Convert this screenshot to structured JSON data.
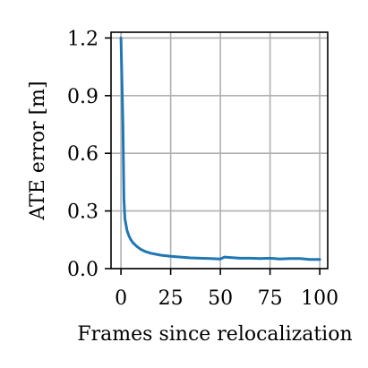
{
  "chart_data": {
    "type": "line",
    "xlabel": "Frames since relocalization",
    "ylabel": "ATE error [m]",
    "xlim": [
      -5,
      104
    ],
    "ylim": [
      0,
      1.23
    ],
    "xticks": [
      0,
      25,
      50,
      75,
      100
    ],
    "xtick_labels": [
      "0",
      "25",
      "50",
      "75",
      "100"
    ],
    "yticks": [
      0,
      0.3,
      0.6,
      0.9,
      1.2
    ],
    "ytick_labels": [
      "0.0",
      "0.3",
      "0.6",
      "0.9",
      "1.2"
    ],
    "grid": true,
    "series": [
      {
        "color": "#1f77b4",
        "x": [
          0,
          1,
          1.5,
          2,
          3,
          4,
          5,
          6,
          8,
          10,
          12,
          15,
          18,
          20,
          25,
          30,
          35,
          40,
          45,
          50,
          52,
          55,
          60,
          65,
          70,
          75,
          80,
          85,
          90,
          95,
          100
        ],
        "y": [
          1.2,
          0.75,
          0.36,
          0.26,
          0.2,
          0.17,
          0.15,
          0.135,
          0.115,
          0.1,
          0.09,
          0.08,
          0.074,
          0.07,
          0.064,
          0.06,
          0.056,
          0.054,
          0.052,
          0.05,
          0.06,
          0.058,
          0.054,
          0.054,
          0.052,
          0.054,
          0.05,
          0.052,
          0.052,
          0.048,
          0.048
        ]
      }
    ]
  }
}
